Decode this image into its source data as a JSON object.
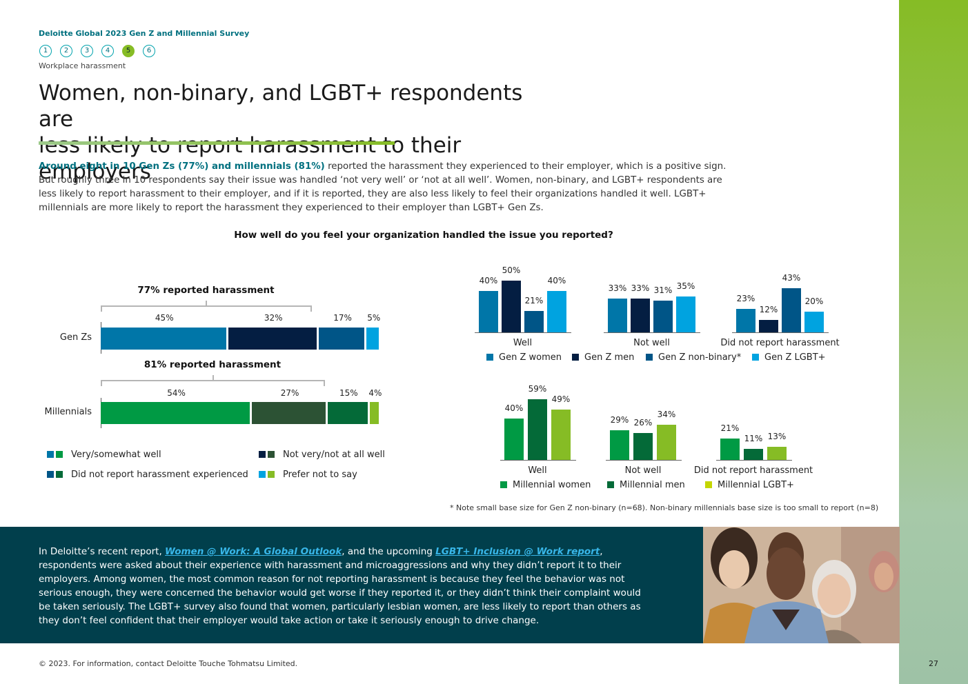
{
  "header": {
    "survey_name": "Deloitte Global 2023 Gen Z and Millennial Survey",
    "steps": [
      "1",
      "2",
      "3",
      "4",
      "5",
      "6"
    ],
    "active_step": "5",
    "section_label": "Workplace harassment"
  },
  "heading": {
    "line1": "Women, non-binary, and LGBT+ respondents are",
    "line2": "less likely to report harassment to their employers"
  },
  "intro": {
    "highlight": "Around eight in 10 Gen Zs (77%) and millennials (81%)",
    "rest": " reported the harassment they experienced to their employer, which is a positive sign. But roughly three in 10 respondents say their issue was handled ‘not very well’ or ‘not at all well’. Women, non-binary, and LGBT+ respondents are less likely to report harassment to their employer, and if it is reported, they are also less likely to feel their organizations handled it well. LGBT+ millennials are more likely to report the harassment they experienced to their employer than LGBT+ Gen Zs."
  },
  "question": "How well do you feel your organization handled the issue you reported?",
  "chart_data": [
    {
      "type": "bar",
      "orientation": "horizontal-stacked",
      "categories": [
        "Gen Zs",
        "Millennials"
      ],
      "annotations": [
        "77% reported harassment",
        "81% reported harassment"
      ],
      "series": [
        {
          "name": "Very/somewhat well",
          "values": [
            45,
            54
          ],
          "labels": [
            "45%",
            "54%"
          ],
          "colors": [
            "#0076a8",
            "#009a44"
          ]
        },
        {
          "name": "Not very/not at all well",
          "values": [
            32,
            27
          ],
          "labels": [
            "32%",
            "27%"
          ],
          "colors": [
            "#041e42",
            "#2c5234"
          ]
        },
        {
          "name": "Did not report harassment experienced",
          "values": [
            17,
            15
          ],
          "labels": [
            "17%",
            "15%"
          ],
          "colors": [
            "#005587",
            "#046a38"
          ]
        },
        {
          "name": "Prefer not to say",
          "values": [
            5,
            4
          ],
          "labels": [
            "5%",
            "4%"
          ],
          "colors": [
            "#00a3e0",
            "#86bc25"
          ]
        }
      ]
    },
    {
      "type": "bar",
      "orientation": "vertical-grouped",
      "categories": [
        "Well",
        "Not well",
        "Did not report harassment"
      ],
      "series": [
        {
          "name": "Gen Z women",
          "values": [
            40,
            33,
            23
          ],
          "labels": [
            "40%",
            "33%",
            "23%"
          ],
          "color": "#0076a8"
        },
        {
          "name": "Gen Z men",
          "values": [
            50,
            33,
            12
          ],
          "labels": [
            "50%",
            "33%",
            "12%"
          ],
          "color": "#041e42"
        },
        {
          "name": "Gen Z non-binary*",
          "values": [
            21,
            31,
            43
          ],
          "labels": [
            "21%",
            "31%",
            "43%"
          ],
          "color": "#005587"
        },
        {
          "name": "Gen Z LGBT+",
          "values": [
            40,
            35,
            20
          ],
          "labels": [
            "40%",
            "35%",
            "20%"
          ],
          "color": "#00a3e0"
        }
      ]
    },
    {
      "type": "bar",
      "orientation": "vertical-grouped",
      "categories": [
        "Well",
        "Not well",
        "Did not report harassment"
      ],
      "series": [
        {
          "name": "Millennial women",
          "values": [
            40,
            29,
            21
          ],
          "labels": [
            "40%",
            "29%",
            "21%"
          ],
          "color": "#009a44"
        },
        {
          "name": "Millennial men",
          "values": [
            59,
            26,
            11
          ],
          "labels": [
            "59%",
            "26%",
            "11%"
          ],
          "color": "#046a38"
        },
        {
          "name": "Millennial LGBT+",
          "values": [
            49,
            34,
            13
          ],
          "labels": [
            "49%",
            "34%",
            "13%"
          ],
          "color": "#86bc25"
        }
      ],
      "legend_colors": [
        "#009a44",
        "#046a38",
        "#c4d600"
      ]
    }
  ],
  "note": "* Note small base size for Gen Z non-binary (n=68). Non-binary millennials base size is too small to report (n=8)",
  "bottom": {
    "t1": "In Deloitte’s recent report, ",
    "link1": "Women @ Work: A Global Outlook",
    "t2": ", and the upcoming ",
    "link2": "LGBT+ Inclusion @ Work report",
    "t3": ", respondents were asked about their experience with harassment and microaggressions and why they didn’t report it to their employers. Among women, the most common reason for not reporting harassment is because they feel the behavior was not serious enough, they were concerned the behavior would get worse if they reported it, or they didn’t think their complaint would be taken seriously. The LGBT+ survey also found that women, particularly lesbian women, are less likely to report than others as they don’t feel confident that their employer would take action or take it seriously enough to drive change."
  },
  "footer": {
    "copyright": "© 2023. For information, contact Deloitte Touche Tohmatsu Limited.",
    "page_number": "27"
  }
}
